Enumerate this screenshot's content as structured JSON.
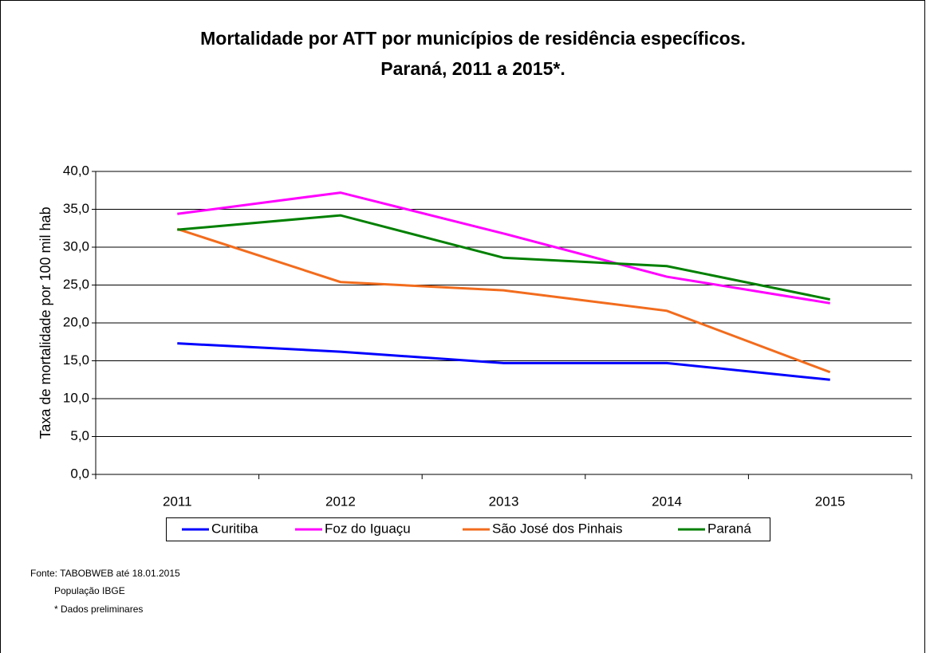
{
  "chart_data": {
    "type": "line",
    "title": "Mortalidade por ATT por municípios de residência específicos.",
    "subtitle": "Paraná, 2011 a 2015*.",
    "ylabel": "Taxa de mortalidade por 100 mil hab",
    "categories": [
      "2011",
      "2012",
      "2013",
      "2014",
      "2015"
    ],
    "series": [
      {
        "name": "Curitiba",
        "color": "#0000ff",
        "values": [
          17.3,
          16.2,
          14.7,
          14.7,
          12.5
        ]
      },
      {
        "name": "Foz do Iguaçu",
        "color": "#ff00ff",
        "values": [
          34.4,
          37.2,
          31.8,
          26.1,
          22.6
        ]
      },
      {
        "name": "São José dos Pinhais",
        "color": "#f26c1d",
        "values": [
          32.4,
          25.4,
          24.3,
          21.6,
          13.5
        ]
      },
      {
        "name": "Paraná",
        "color": "#008000",
        "values": [
          32.3,
          34.2,
          28.6,
          27.5,
          23.1
        ]
      }
    ],
    "ylim": [
      0,
      40
    ],
    "yticks": [
      {
        "value": 0,
        "label": "0,0"
      },
      {
        "value": 5,
        "label": "5,0"
      },
      {
        "value": 10,
        "label": "10,0"
      },
      {
        "value": 15,
        "label": "15,0"
      },
      {
        "value": 20,
        "label": "20,0"
      },
      {
        "value": 25,
        "label": "25,0"
      },
      {
        "value": 30,
        "label": "30,0"
      },
      {
        "value": 35,
        "label": "35,0"
      },
      {
        "value": 40,
        "label": "40,0"
      }
    ],
    "grid": true,
    "legend": "bottom",
    "notes": [
      "Fonte: TABOBWEB até 18.01.2015",
      "População IBGE",
      "* Dados preliminares"
    ]
  }
}
